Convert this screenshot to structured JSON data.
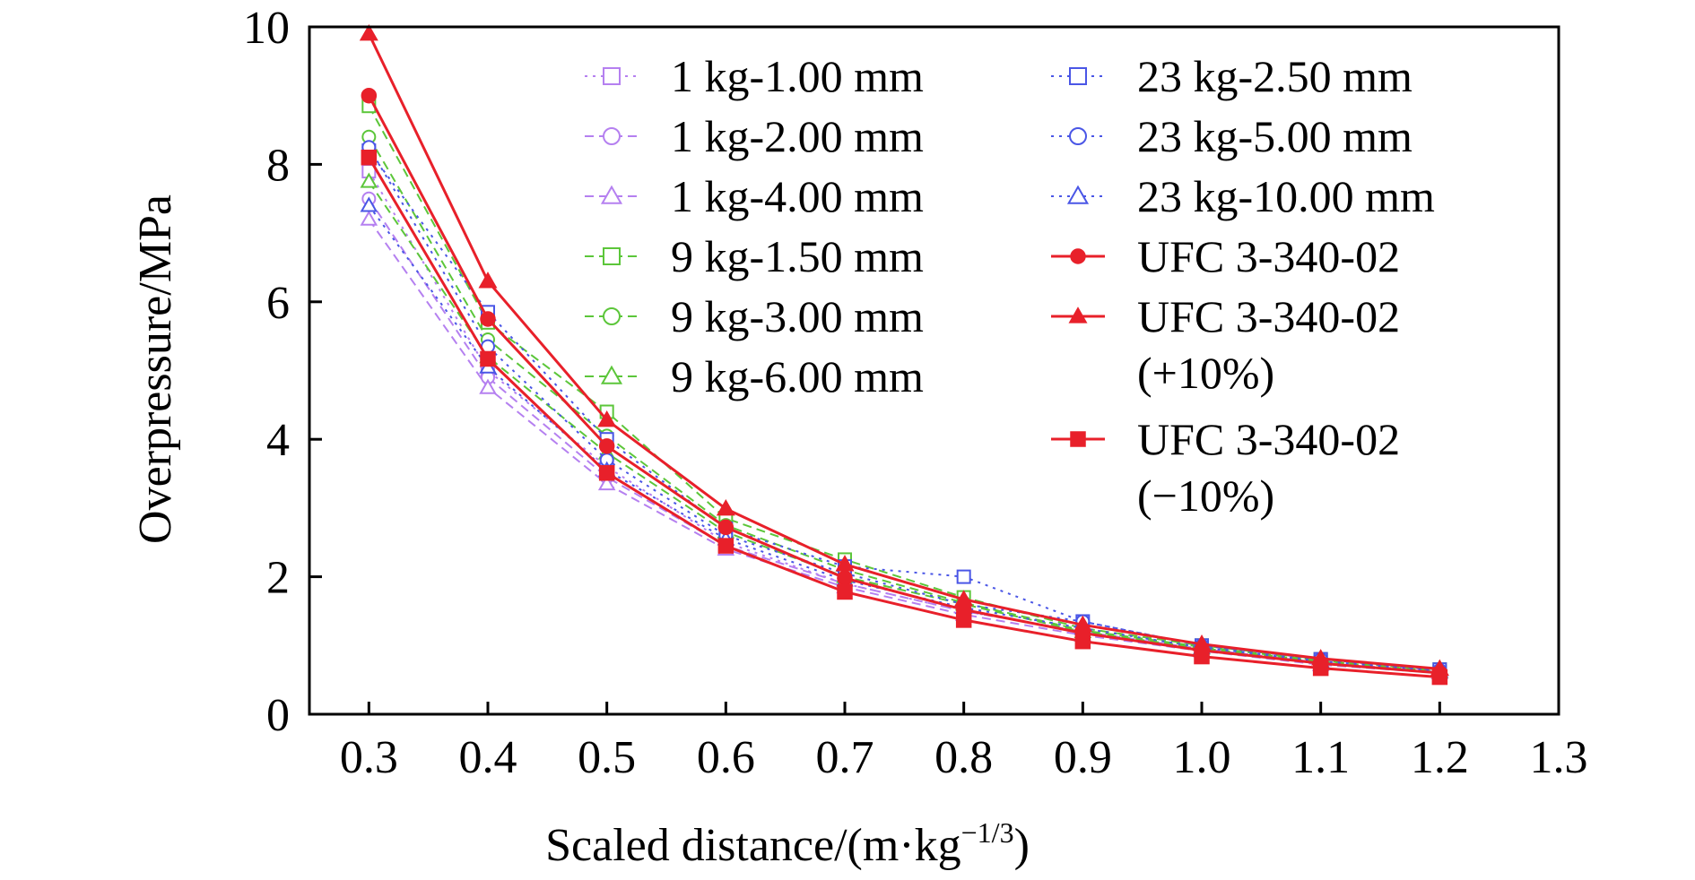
{
  "chart_data": {
    "type": "line",
    "title": "",
    "xlabel": "Scaled distance/(m·kg",
    "xlabel_superscript": "−1/3",
    "xlabel_suffix": ")",
    "ylabel": "Overpressure/MPa",
    "xlim": [
      0.25,
      1.3
    ],
    "ylim": [
      0,
      10
    ],
    "grid": false,
    "legend_position": "top-right",
    "xticks": [
      0.3,
      0.4,
      0.5,
      0.6,
      0.7,
      0.8,
      0.9,
      1.0,
      1.1,
      1.2,
      1.3
    ],
    "xtick_labels": [
      "0.3",
      "0.4",
      "0.5",
      "0.6",
      "0.7",
      "0.8",
      "0.9",
      "1.0",
      "1.1",
      "1.2",
      "1.3"
    ],
    "yticks": [
      0,
      2,
      4,
      6,
      8,
      10
    ],
    "ytick_labels": [
      "0",
      "2",
      "4",
      "6",
      "8",
      "10"
    ],
    "x": [
      0.3,
      0.4,
      0.5,
      0.6,
      0.7,
      0.8,
      0.9,
      1.0,
      1.1,
      1.2
    ],
    "series": [
      {
        "name": "1 kg-1.00 mm",
        "label_lines": [
          "1 kg-1.00 mm"
        ],
        "color": "#b580f0",
        "dash": "3,6",
        "marker": "square-open",
        "values": [
          7.9,
          5.0,
          3.6,
          2.5,
          1.9,
          1.5,
          1.2,
          0.95,
          0.75,
          0.62
        ]
      },
      {
        "name": "1 kg-2.00 mm",
        "label_lines": [
          "1 kg-2.00 mm"
        ],
        "color": "#b580f0",
        "dash": "10,6",
        "marker": "circle-open",
        "values": [
          7.5,
          4.9,
          3.45,
          2.45,
          1.9,
          1.5,
          1.2,
          0.95,
          0.75,
          0.6
        ]
      },
      {
        "name": "1 kg-4.00 mm",
        "label_lines": [
          "1 kg-4.00 mm"
        ],
        "color": "#b580f0",
        "dash": "10,6",
        "marker": "triangle-open",
        "values": [
          7.2,
          4.75,
          3.35,
          2.4,
          1.85,
          1.45,
          1.15,
          0.92,
          0.72,
          0.6
        ]
      },
      {
        "name": "9 kg-1.50 mm",
        "label_lines": [
          "9 kg-1.50 mm"
        ],
        "color": "#5cc63a",
        "dash": "10,6",
        "marker": "square-open",
        "values": [
          8.85,
          5.7,
          4.4,
          2.85,
          2.25,
          1.7,
          1.25,
          1.0,
          0.8,
          0.65
        ]
      },
      {
        "name": "9 kg-3.00 mm",
        "label_lines": [
          "9 kg-3.00 mm"
        ],
        "color": "#5cc63a",
        "dash": "10,6",
        "marker": "circle-open",
        "values": [
          8.4,
          5.45,
          4.05,
          2.75,
          2.1,
          1.62,
          1.22,
          0.98,
          0.78,
          0.64
        ]
      },
      {
        "name": "9 kg-6.00 mm",
        "label_lines": [
          "9 kg-6.00 mm"
        ],
        "color": "#5cc63a",
        "dash": "10,6",
        "marker": "triangle-open",
        "values": [
          7.75,
          5.2,
          3.8,
          2.65,
          2.0,
          1.6,
          1.2,
          0.96,
          0.77,
          0.62
        ]
      },
      {
        "name": "23 kg-2.50 mm",
        "label_lines": [
          "23 kg-2.50 mm"
        ],
        "color": "#4a56e6",
        "dash": "3,6",
        "marker": "square-open",
        "values": [
          8.2,
          5.85,
          4.0,
          2.7,
          2.15,
          2.0,
          1.35,
          1.0,
          0.8,
          0.65
        ]
      },
      {
        "name": "23 kg-5.00 mm",
        "label_lines": [
          "23 kg-5.00 mm"
        ],
        "color": "#4a56e6",
        "dash": "3,6",
        "marker": "circle-open",
        "values": [
          8.25,
          5.35,
          3.7,
          2.6,
          2.05,
          1.6,
          1.35,
          1.0,
          0.8,
          0.64
        ]
      },
      {
        "name": "23 kg-10.00 mm",
        "label_lines": [
          "23 kg-10.00 mm"
        ],
        "color": "#4a56e6",
        "dash": "3,6",
        "marker": "triangle-open",
        "values": [
          7.4,
          5.05,
          3.55,
          2.55,
          1.95,
          1.55,
          1.25,
          0.97,
          0.77,
          0.63
        ]
      },
      {
        "name": "UFC 3-340-02",
        "label_lines": [
          "UFC 3-340-02"
        ],
        "color": "#e8202a",
        "dash": "",
        "marker": "circle-filled",
        "values": [
          9.0,
          5.75,
          3.9,
          2.72,
          1.98,
          1.52,
          1.18,
          0.93,
          0.74,
          0.6
        ]
      },
      {
        "name": "UFC 3-340-02 (+10%)",
        "label_lines": [
          "UFC 3-340-02",
          "(+10%)"
        ],
        "color": "#e8202a",
        "dash": "",
        "marker": "triangle-filled",
        "values": [
          9.9,
          6.3,
          4.28,
          2.99,
          2.18,
          1.67,
          1.3,
          1.02,
          0.81,
          0.66
        ]
      },
      {
        "name": "UFC 3-340-02 (−10%)",
        "label_lines": [
          "UFC 3-340-02",
          "(−10%)"
        ],
        "color": "#e8202a",
        "dash": "",
        "marker": "square-filled",
        "values": [
          8.1,
          5.17,
          3.51,
          2.45,
          1.78,
          1.37,
          1.06,
          0.84,
          0.67,
          0.54
        ]
      }
    ]
  }
}
